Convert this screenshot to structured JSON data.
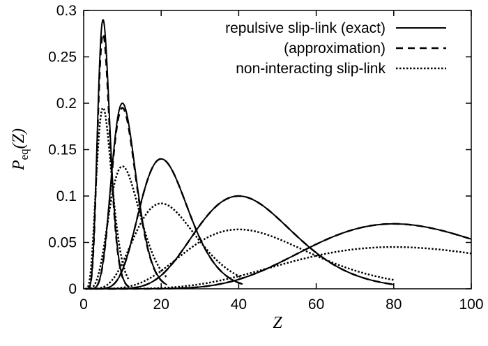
{
  "chart_data": {
    "type": "line",
    "xlabel": "Z",
    "ylabel": {
      "main": "P",
      "sub": "eq",
      "arg": "(Z)"
    },
    "xlim": [
      0,
      100
    ],
    "ylim": [
      0,
      0.3
    ],
    "xticks": [
      0,
      20,
      40,
      60,
      80,
      100
    ],
    "yticks": [
      0,
      0.05,
      0.1,
      0.15,
      0.2,
      0.25,
      0.3
    ],
    "xtick_labels": [
      "0",
      "20",
      "40",
      "60",
      "80",
      "100"
    ],
    "ytick_labels": [
      "0",
      "0.05",
      "0.1",
      "0.15",
      "0.2",
      "0.25",
      "0.3"
    ],
    "grid": false,
    "legend_position": "top-right",
    "series": [
      {
        "name": "repulsive slip-link (exact)",
        "style": "solid",
        "peaks": [
          {
            "mean": 5,
            "peak": 0.29
          },
          {
            "mean": 10,
            "peak": 0.2
          },
          {
            "mean": 20,
            "peak": 0.14
          },
          {
            "mean": 40,
            "peak": 0.1
          },
          {
            "mean": 80,
            "peak": 0.07
          }
        ]
      },
      {
        "name": "(approximation)",
        "style": "dashed",
        "peaks": [
          {
            "mean": 5,
            "peak": 0.275
          },
          {
            "mean": 10,
            "peak": 0.195
          },
          {
            "mean": 20,
            "peak": 0.14
          },
          {
            "mean": 40,
            "peak": 0.1
          },
          {
            "mean": 80,
            "peak": 0.07
          }
        ]
      },
      {
        "name": "non-interacting slip-link",
        "style": "dotted",
        "peaks": [
          {
            "mean": 5,
            "peak": 0.195
          },
          {
            "mean": 10,
            "peak": 0.132
          },
          {
            "mean": 20,
            "peak": 0.092
          },
          {
            "mean": 40,
            "peak": 0.064
          },
          {
            "mean": 80,
            "peak": 0.045
          }
        ]
      }
    ]
  }
}
